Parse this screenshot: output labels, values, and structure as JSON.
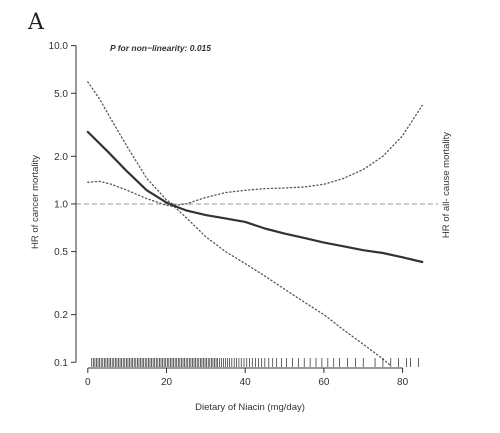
{
  "panel_label": "A",
  "chart_data": {
    "type": "line",
    "annotation": "P for non−linearity: 0.015",
    "xlabel": "Dietary of Niacin (mg/day)",
    "ylabel_left": "HR of cancer mortality",
    "ylabel_right": "HR of all- cause mortality",
    "x_ticks": [
      0,
      20,
      40,
      60,
      80
    ],
    "x_tick_labels": [
      "0",
      "20",
      "40",
      "60",
      "80"
    ],
    "y_scale": "log",
    "y_ticks": [
      0.1,
      0.2,
      0.5,
      1.0,
      2.0,
      5.0,
      10.0
    ],
    "y_tick_labels": [
      "0.1",
      "0.2",
      "0.5",
      "1.0",
      "2.0",
      "5.0",
      "10.0"
    ],
    "xlim": [
      -3,
      89
    ],
    "ylim": [
      0.092,
      11.5
    ],
    "reference_line": {
      "y": 1.0,
      "style": "dashed",
      "color": "#999999"
    },
    "series": [
      {
        "role": "estimate",
        "style": "solid",
        "color": "#333333",
        "x": [
          0,
          5,
          10,
          15,
          20,
          22,
          25,
          30,
          35,
          40,
          45,
          50,
          55,
          60,
          65,
          70,
          75,
          80,
          85
        ],
        "y": [
          2.85,
          2.15,
          1.6,
          1.22,
          1.02,
          0.97,
          0.91,
          0.85,
          0.81,
          0.77,
          0.7,
          0.65,
          0.61,
          0.57,
          0.54,
          0.51,
          0.49,
          0.46,
          0.43
        ]
      },
      {
        "role": "upper CI",
        "style": "dotted",
        "color": "#555555",
        "x": [
          0,
          3,
          6,
          10,
          15,
          20,
          22,
          25,
          30,
          35,
          40,
          45,
          50,
          55,
          60,
          65,
          70,
          75,
          80,
          85
        ],
        "y": [
          5.9,
          4.6,
          3.4,
          2.3,
          1.45,
          1.06,
          0.98,
          1.0,
          1.1,
          1.18,
          1.22,
          1.25,
          1.26,
          1.28,
          1.33,
          1.45,
          1.65,
          2.0,
          2.7,
          4.2
        ]
      },
      {
        "role": "lower CI",
        "style": "dotted",
        "color": "#555555",
        "x": [
          0,
          3,
          6,
          10,
          15,
          20,
          22,
          25,
          30,
          35,
          40,
          45,
          50,
          55,
          60,
          65,
          70,
          75,
          77
        ],
        "y": [
          1.37,
          1.39,
          1.33,
          1.22,
          1.08,
          0.98,
          0.96,
          0.82,
          0.62,
          0.5,
          0.42,
          0.35,
          0.29,
          0.24,
          0.2,
          0.16,
          0.13,
          0.105,
          0.095
        ]
      }
    ],
    "rug_x": [
      1,
      1.4,
      1.8,
      2.2,
      2.6,
      3,
      3.4,
      3.8,
      4.2,
      4.6,
      5,
      5.4,
      5.8,
      6.2,
      6.6,
      7,
      7.4,
      7.8,
      8.2,
      8.6,
      9,
      9.4,
      9.8,
      10.2,
      10.6,
      11,
      11.4,
      11.8,
      12.2,
      12.6,
      13,
      13.4,
      13.8,
      14.2,
      14.6,
      15,
      15.4,
      15.8,
      16.2,
      16.6,
      17,
      17.4,
      17.8,
      18.2,
      18.6,
      19,
      19.4,
      19.8,
      20.2,
      20.6,
      21,
      21.4,
      21.8,
      22.2,
      22.6,
      23,
      23.4,
      23.8,
      24.2,
      24.6,
      25,
      25.4,
      25.8,
      26.2,
      26.6,
      27,
      27.4,
      27.8,
      28.2,
      28.6,
      29,
      29.4,
      29.8,
      30.2,
      30.6,
      31,
      31.4,
      31.8,
      32.2,
      32.6,
      33,
      33.5,
      34,
      34.5,
      35,
      35.5,
      36,
      36.6,
      37.2,
      37.8,
      38.4,
      39,
      39.7,
      40.4,
      41.1,
      41.8,
      42.6,
      43.4,
      44.2,
      45,
      46,
      47,
      48,
      49.2,
      50.5,
      52,
      53.5,
      55,
      56.5,
      58,
      59.5,
      61,
      62.5,
      64,
      66,
      68,
      70,
      73,
      75,
      77,
      79,
      81,
      82,
      84
    ]
  }
}
